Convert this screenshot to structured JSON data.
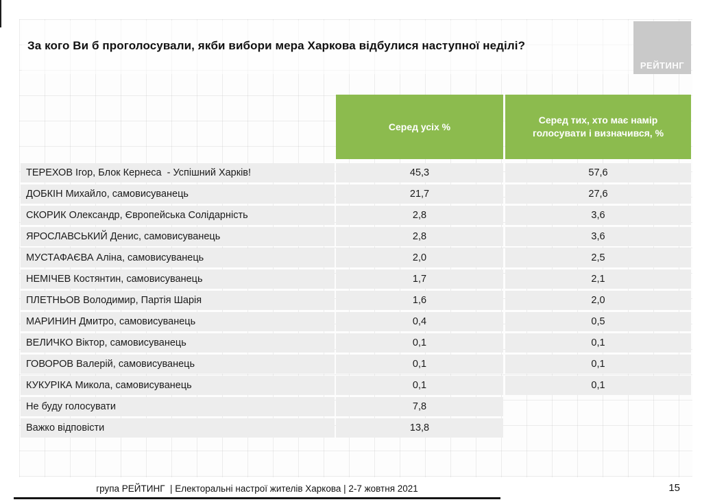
{
  "title": "За кого Ви б проголосували, якби вибори мера Харкова відбулися наступної неділі?",
  "logo": {
    "text": "РЕЙТИНГ"
  },
  "table": {
    "headers": {
      "among_all": "Серед усіх %",
      "among_decided": "Серед тих, хто має намір голосувати і визначився, %"
    },
    "rows": [
      {
        "label": "ТЕРЕХОВ Ігор, Блок Кернеса  - Успішний Харків!",
        "all": "45,3",
        "decided": "57,6"
      },
      {
        "label": "ДОБКІН Михайло, самовисуванець",
        "all": "21,7",
        "decided": "27,6"
      },
      {
        "label": "СКОРИК Олександр, Європейська Солідарність",
        "all": "2,8",
        "decided": "3,6"
      },
      {
        "label": "ЯРОСЛАВСЬКИЙ Денис, самовисуванець",
        "all": "2,8",
        "decided": "3,6"
      },
      {
        "label": "МУСТАФАЄВА Аліна, самовисуванець",
        "all": "2,0",
        "decided": "2,5"
      },
      {
        "label": "НЕМІЧЕВ Костянтин, самовисуванець",
        "all": "1,7",
        "decided": "2,1"
      },
      {
        "label": "ПЛЕТНЬОВ Володимир, Партія Шарія",
        "all": "1,6",
        "decided": "2,0"
      },
      {
        "label": "МАРИНИН Дмитро, самовисуванець",
        "all": "0,4",
        "decided": "0,5"
      },
      {
        "label": "ВЕЛИЧКО Віктор, самовисуванець",
        "all": "0,1",
        "decided": "0,1"
      },
      {
        "label": "ГОВОРОВ Валерій, самовисуванець",
        "all": "0,1",
        "decided": "0,1"
      },
      {
        "label": "КУКУРІКА Микола, самовисуванець",
        "all": "0,1",
        "decided": "0,1"
      },
      {
        "label": "Не буду голосувати",
        "all": "7,8",
        "decided": null
      },
      {
        "label": "Важко відповісти",
        "all": "13,8",
        "decided": null
      }
    ]
  },
  "footer": {
    "text": "група РЕЙТИНГ  | Електоральні настрої жителів Харкова | 2-7 жовтня 2021",
    "page": "15"
  },
  "colors": {
    "header_green": "#8cbb4e",
    "row_gray": "#ededed",
    "logo_gray": "#c9c9c9"
  },
  "chart_data": {
    "type": "table",
    "title": "За кого Ви б проголосували, якби вибори мера Харкова відбулися наступної неділі?",
    "columns": [
      "Серед усіх %",
      "Серед тих, хто має намір голосувати і визначився, %"
    ],
    "categories": [
      "ТЕРЕХОВ Ігор, Блок Кернеса - Успішний Харків!",
      "ДОБКІН Михайло, самовисуванець",
      "СКОРИК Олександр, Європейська Солідарність",
      "ЯРОСЛАВСЬКИЙ Денис, самовисуванець",
      "МУСТАФАЄВА Аліна, самовисуванець",
      "НЕМІЧЕВ Костянтин, самовисуванець",
      "ПЛЕТНЬОВ Володимир, Партія Шарія",
      "МАРИНИН Дмитро, самовисуванець",
      "ВЕЛИЧКО Віктор, самовисуванець",
      "ГОВОРОВ Валерій, самовисуванець",
      "КУКУРІКА Микола, самовисуванець",
      "Не буду голосувати",
      "Важко відповісти"
    ],
    "series": [
      {
        "name": "Серед усіх %",
        "values": [
          45.3,
          21.7,
          2.8,
          2.8,
          2.0,
          1.7,
          1.6,
          0.4,
          0.1,
          0.1,
          0.1,
          7.8,
          13.8
        ]
      },
      {
        "name": "Серед тих, хто має намір голосувати і визначився, %",
        "values": [
          57.6,
          27.6,
          3.6,
          3.6,
          2.5,
          2.1,
          2.0,
          0.5,
          0.1,
          0.1,
          0.1,
          null,
          null
        ]
      }
    ]
  }
}
